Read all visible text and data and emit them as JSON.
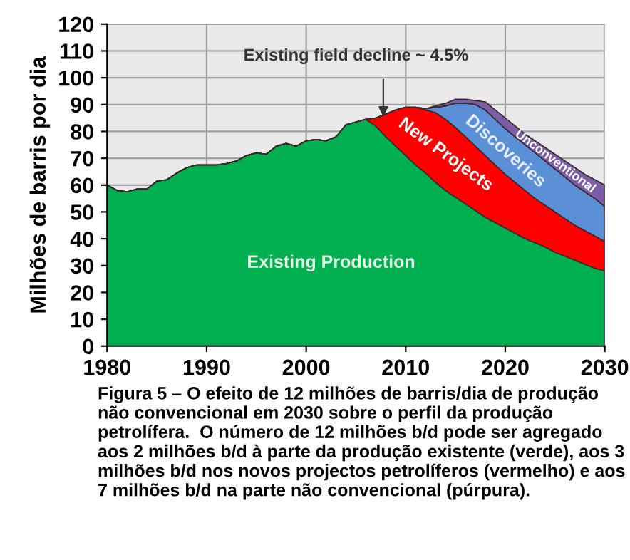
{
  "chart_data": {
    "type": "area",
    "stacked": true,
    "ylabel": "Milhões de barris por dia",
    "x": [
      1980,
      1981,
      1982,
      1983,
      1984,
      1985,
      1986,
      1987,
      1988,
      1989,
      1990,
      1991,
      1992,
      1993,
      1994,
      1995,
      1996,
      1997,
      1998,
      1999,
      2000,
      2001,
      2002,
      2003,
      2004,
      2005,
      2006,
      2007,
      2008,
      2009,
      2010,
      2011,
      2012,
      2013,
      2014,
      2015,
      2016,
      2017,
      2018,
      2019,
      2020,
      2021,
      2022,
      2023,
      2024,
      2025,
      2026,
      2027,
      2028,
      2029,
      2030
    ],
    "series": [
      {
        "name": "Existing Production",
        "color": "#00b050",
        "values": [
          60,
          58,
          57.5,
          58.5,
          58.5,
          61.5,
          62,
          64.5,
          66.5,
          67.5,
          67.5,
          67.5,
          68,
          69,
          71,
          72,
          71.5,
          74.5,
          75.5,
          74.5,
          76.5,
          77,
          76.5,
          78,
          82.5,
          83.5,
          84.5,
          82,
          78,
          74.5,
          71,
          67.5,
          64.5,
          61,
          58,
          55.5,
          53,
          50.5,
          48,
          46,
          44,
          42,
          40,
          38.5,
          37,
          35,
          33.5,
          32,
          30.5,
          29,
          28
        ]
      },
      {
        "name": "New Projects",
        "color": "#ff0000",
        "values": [
          0,
          0,
          0,
          0,
          0,
          0,
          0,
          0,
          0,
          0,
          0,
          0,
          0,
          0,
          0,
          0,
          0,
          0,
          0,
          0,
          0,
          0,
          0,
          0,
          0,
          0,
          0,
          3,
          8.5,
          13.5,
          18,
          21.5,
          23.5,
          26,
          26.5,
          26,
          25,
          24,
          23,
          21.5,
          20,
          19,
          18,
          16.5,
          15.5,
          15,
          14,
          13,
          12.5,
          12,
          11
        ]
      },
      {
        "name": "Discoveries",
        "color": "#5b8fd6",
        "values": [
          0,
          0,
          0,
          0,
          0,
          0,
          0,
          0,
          0,
          0,
          0,
          0,
          0,
          0,
          0,
          0,
          0,
          0,
          0,
          0,
          0,
          0,
          0,
          0,
          0,
          0,
          0,
          0,
          0,
          0,
          0,
          0,
          0.5,
          2,
          5,
          9,
          12.5,
          15.5,
          17,
          17,
          17,
          17,
          17,
          17,
          16.5,
          16,
          15.5,
          15,
          14.5,
          14,
          13
        ]
      },
      {
        "name": "Unconventional",
        "color": "#7b5ea7",
        "values": [
          0,
          0,
          0,
          0,
          0,
          0,
          0,
          0,
          0,
          0,
          0,
          0,
          0,
          0,
          0,
          0,
          0,
          0,
          0,
          0,
          0,
          0,
          0,
          0,
          0,
          0,
          0,
          0,
          0,
          0,
          0,
          0,
          0,
          0.5,
          1,
          1.5,
          1.5,
          1.5,
          3,
          3.5,
          4,
          4,
          4,
          4.5,
          5,
          5.5,
          6,
          6.5,
          6.5,
          7,
          8
        ]
      }
    ],
    "xlim": [
      1980,
      2030
    ],
    "xticks": [
      1980,
      1990,
      2000,
      2010,
      2020,
      2030
    ],
    "ylim": [
      0,
      120
    ],
    "yticks": [
      0,
      10,
      20,
      30,
      40,
      50,
      60,
      70,
      80,
      90,
      100,
      110,
      120
    ],
    "grid": true,
    "annotations": [
      "Existing field decline ~ 4.5%",
      "Figura 5 – O efeito de 12 milhões de barris/dia de produção não convencional em 2030 sobre o perfil da produção petrolífera.  O número de 12 milhões b/d pode ser agregado aos 2 milhões b/d à parte da produção existente (verde), aos 3 milhões b/d nos novos projectos petrolíferos (vermelho) e aos 7 milhões b/d na parte não convencional (púrpura)."
    ]
  }
}
